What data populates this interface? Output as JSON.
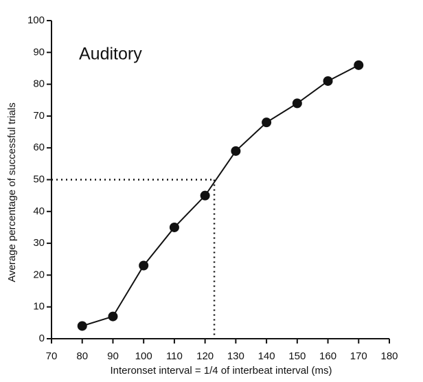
{
  "chart_data": {
    "type": "line",
    "annotation": "Auditory",
    "xlabel": "Interonset interval = 1/4 of interbeat interval (ms)",
    "ylabel": "Average percentage of successful trials",
    "x": [
      80,
      90,
      100,
      110,
      120,
      130,
      140,
      150,
      160,
      170
    ],
    "series": [
      {
        "color": "#111111",
        "values": [
          4,
          7,
          23,
          35,
          45,
          59,
          68,
          74,
          81,
          86
        ]
      }
    ],
    "reference": {
      "x": 123,
      "y": 50
    },
    "xlim": [
      70,
      180
    ],
    "xticks": [
      70,
      80,
      90,
      100,
      110,
      120,
      130,
      140,
      150,
      160,
      170,
      180
    ],
    "ylim": [
      0,
      100
    ],
    "yticks": [
      0,
      10,
      20,
      30,
      40,
      50,
      60,
      70,
      80,
      90,
      100
    ],
    "grid": false
  }
}
